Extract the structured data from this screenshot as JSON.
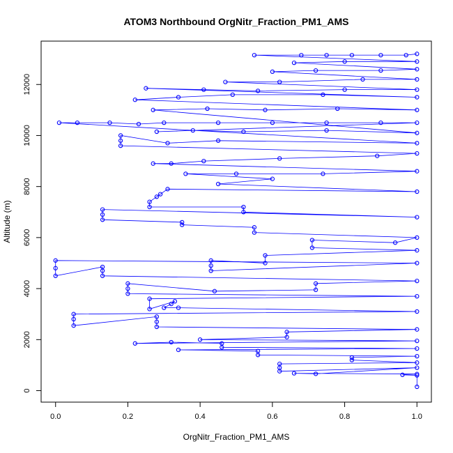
{
  "chart_data": {
    "type": "scatter",
    "title": "ATOM3 Northbound OrgNitr_Fraction_PM1_AMS",
    "xlabel": "OrgNitr_Fraction_PM1_AMS",
    "ylabel": "Altitude (m)",
    "xlim": [
      -0.04,
      1.04
    ],
    "ylim": [
      -450,
      13700
    ],
    "x_ticks": [
      0.0,
      0.2,
      0.4,
      0.6,
      0.8,
      1.0
    ],
    "x_tick_labels": [
      "0.0",
      "0.2",
      "0.4",
      "0.6",
      "0.8",
      "1.0"
    ],
    "y_ticks": [
      0,
      2000,
      4000,
      6000,
      8000,
      10000,
      12000
    ],
    "y_tick_labels": [
      "0",
      "2000",
      "4000",
      "6000",
      "8000",
      "10000",
      "12000"
    ],
    "grid": false,
    "legend": "none",
    "colors": {
      "series": "#0000ff",
      "axis": "#000000"
    },
    "series": [
      {
        "marker": "open-circle",
        "connected": true,
        "values_note_omitted": false,
        "points": [
          [
            1.0,
            150
          ],
          [
            1.0,
            600
          ],
          [
            0.96,
            620
          ],
          [
            1.0,
            650
          ],
          [
            0.66,
            680
          ],
          [
            0.72,
            660
          ],
          [
            1.0,
            900
          ],
          [
            0.62,
            760
          ],
          [
            0.62,
            900
          ],
          [
            0.62,
            1050
          ],
          [
            1.0,
            1100
          ],
          [
            0.82,
            1200
          ],
          [
            0.82,
            1300
          ],
          [
            1.0,
            1350
          ],
          [
            0.56,
            1400
          ],
          [
            0.56,
            1550
          ],
          [
            0.34,
            1600
          ],
          [
            1.0,
            1650
          ],
          [
            0.46,
            1700
          ],
          [
            0.46,
            1850
          ],
          [
            0.32,
            1900
          ],
          [
            0.22,
            1850
          ],
          [
            1.0,
            1950
          ],
          [
            0.4,
            2000
          ],
          [
            0.64,
            2100
          ],
          [
            0.64,
            2300
          ],
          [
            1.0,
            2400
          ],
          [
            0.28,
            2500
          ],
          [
            0.28,
            2700
          ],
          [
            0.28,
            2900
          ],
          [
            0.05,
            2550
          ],
          [
            0.05,
            2800
          ],
          [
            0.05,
            3000
          ],
          [
            1.0,
            3100
          ],
          [
            0.34,
            3250
          ],
          [
            0.3,
            3250
          ],
          [
            0.32,
            3400
          ],
          [
            0.33,
            3500
          ],
          [
            0.26,
            3200
          ],
          [
            0.26,
            3600
          ],
          [
            1.0,
            3700
          ],
          [
            0.2,
            3800
          ],
          [
            0.2,
            4000
          ],
          [
            0.2,
            4200
          ],
          [
            0.44,
            3900
          ],
          [
            0.72,
            3950
          ],
          [
            0.72,
            4200
          ],
          [
            1.0,
            4300
          ],
          [
            0.13,
            4500
          ],
          [
            0.13,
            4700
          ],
          [
            0.13,
            4850
          ],
          [
            0.0,
            4500
          ],
          [
            0.0,
            4800
          ],
          [
            0.0,
            5100
          ],
          [
            1.0,
            5000
          ],
          [
            0.43,
            4700
          ],
          [
            0.43,
            4900
          ],
          [
            0.43,
            5100
          ],
          [
            0.58,
            5000
          ],
          [
            0.58,
            5300
          ],
          [
            1.0,
            5500
          ],
          [
            0.71,
            5600
          ],
          [
            0.71,
            5900
          ],
          [
            0.94,
            5800
          ],
          [
            1.0,
            6000
          ],
          [
            0.55,
            6200
          ],
          [
            0.55,
            6400
          ],
          [
            0.35,
            6500
          ],
          [
            0.35,
            6600
          ],
          [
            0.13,
            6700
          ],
          [
            0.13,
            6900
          ],
          [
            0.13,
            7100
          ],
          [
            1.0,
            6800
          ],
          [
            0.52,
            7000
          ],
          [
            0.52,
            7200
          ],
          [
            0.26,
            7200
          ],
          [
            0.26,
            7400
          ],
          [
            0.28,
            7600
          ],
          [
            0.29,
            7700
          ],
          [
            0.31,
            7900
          ],
          [
            1.0,
            7800
          ],
          [
            0.45,
            8100
          ],
          [
            0.6,
            8300
          ],
          [
            0.36,
            8500
          ],
          [
            0.5,
            8500
          ],
          [
            0.74,
            8500
          ],
          [
            1.0,
            8600
          ],
          [
            0.27,
            8900
          ],
          [
            0.32,
            8900
          ],
          [
            0.41,
            9000
          ],
          [
            0.62,
            9100
          ],
          [
            0.89,
            9200
          ],
          [
            1.0,
            9300
          ],
          [
            0.18,
            9600
          ],
          [
            0.18,
            9800
          ],
          [
            0.18,
            10000
          ],
          [
            0.31,
            9700
          ],
          [
            0.45,
            9800
          ],
          [
            1.0,
            9700
          ],
          [
            0.01,
            10500
          ],
          [
            0.06,
            10500
          ],
          [
            0.15,
            10500
          ],
          [
            0.23,
            10450
          ],
          [
            0.3,
            10500
          ],
          [
            0.45,
            10500
          ],
          [
            0.6,
            10500
          ],
          [
            0.75,
            10500
          ],
          [
            0.9,
            10500
          ],
          [
            1.0,
            10500
          ],
          [
            0.28,
            10150
          ],
          [
            0.38,
            10200
          ],
          [
            0.52,
            10150
          ],
          [
            0.75,
            10200
          ],
          [
            1.0,
            10100
          ],
          [
            0.27,
            11000
          ],
          [
            0.42,
            11050
          ],
          [
            0.58,
            11000
          ],
          [
            0.78,
            11050
          ],
          [
            1.0,
            11000
          ],
          [
            0.22,
            11400
          ],
          [
            0.34,
            11500
          ],
          [
            0.49,
            11600
          ],
          [
            0.74,
            11600
          ],
          [
            1.0,
            11500
          ],
          [
            0.25,
            11850
          ],
          [
            0.41,
            11800
          ],
          [
            0.56,
            11750
          ],
          [
            0.8,
            11800
          ],
          [
            1.0,
            11800
          ],
          [
            0.47,
            12100
          ],
          [
            0.62,
            12100
          ],
          [
            0.85,
            12200
          ],
          [
            1.0,
            12200
          ],
          [
            0.6,
            12500
          ],
          [
            0.72,
            12550
          ],
          [
            0.9,
            12550
          ],
          [
            1.0,
            12600
          ],
          [
            0.66,
            12850
          ],
          [
            0.8,
            12900
          ],
          [
            1.0,
            12900
          ],
          [
            0.55,
            13150
          ],
          [
            0.68,
            13150
          ],
          [
            0.75,
            13150
          ],
          [
            0.82,
            13150
          ],
          [
            0.9,
            13150
          ],
          [
            0.97,
            13150
          ],
          [
            1.0,
            13200
          ]
        ]
      }
    ]
  }
}
